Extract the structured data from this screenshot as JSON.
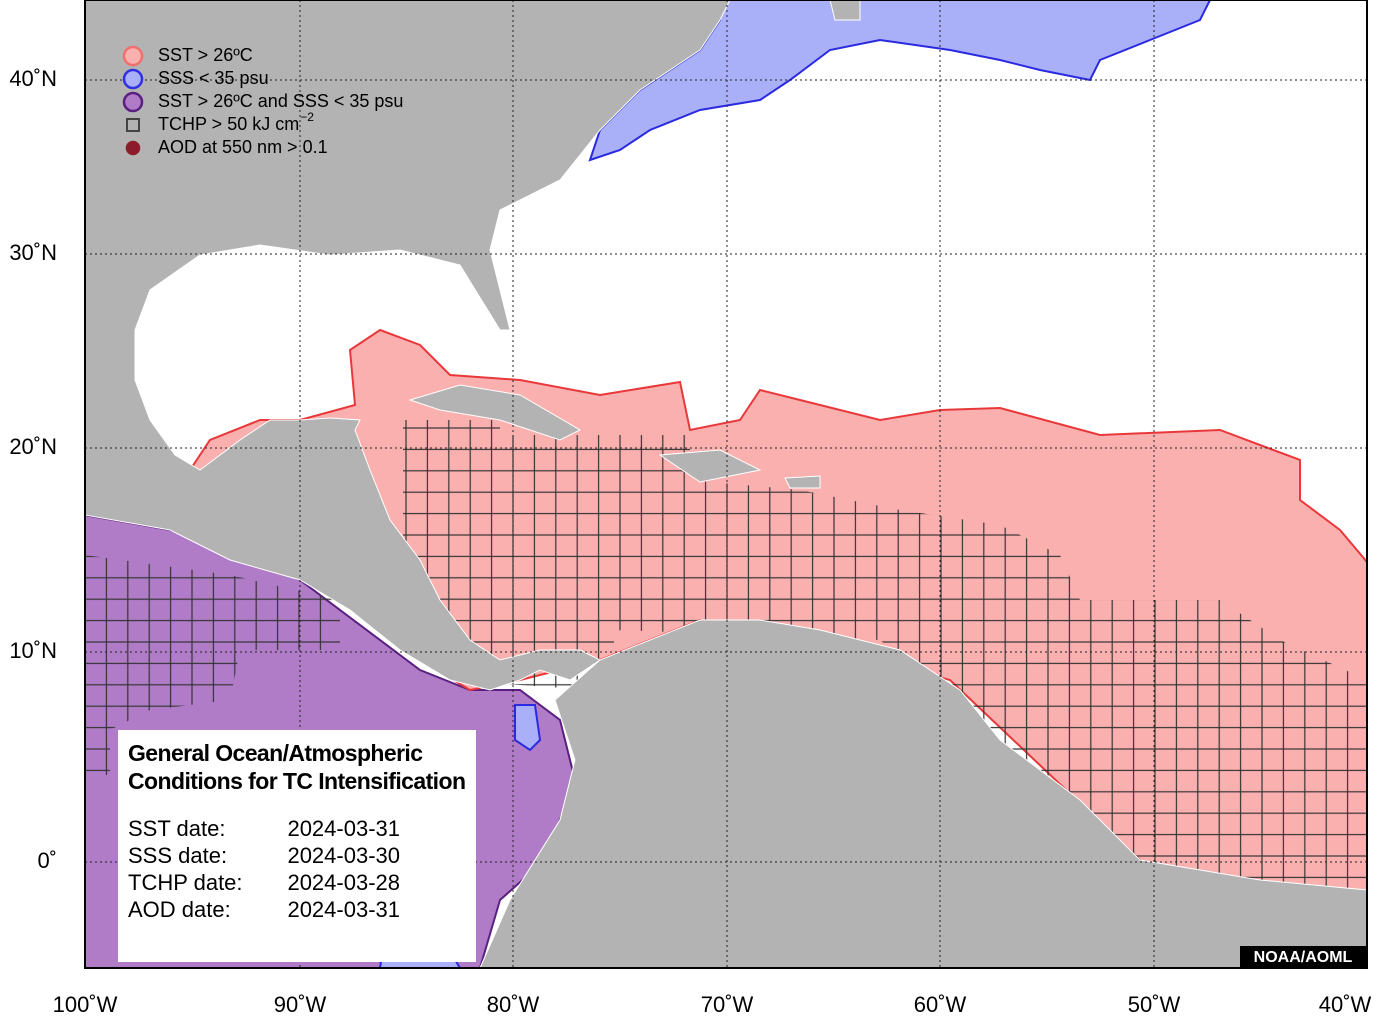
{
  "map": {
    "lat_labels": [
      "40˚N",
      "30˚N",
      "20˚N",
      "10˚N",
      "0˚"
    ],
    "lon_labels": [
      "100˚W",
      "90˚W",
      "80˚W",
      "70˚W",
      "60˚W",
      "50˚W",
      "40˚W"
    ],
    "legend": [
      {
        "label": "SST > 26ºC"
      },
      {
        "label": "SSS < 35 psu"
      },
      {
        "label": "SST > 26ºC and SSS < 35 psu"
      },
      {
        "label": "TCHP > 50 kJ cm",
        "superscript": "−2"
      },
      {
        "label": "AOD at 550 nm > 0.1"
      }
    ],
    "info": {
      "title": [
        "General Ocean/Atmospheric",
        "Conditions for TC Intensification"
      ],
      "dates": [
        {
          "label": "SST date:",
          "date": "2024-03-31"
        },
        {
          "label": "SSS date:",
          "date": "2024-03-30"
        },
        {
          "label": "TCHP date:",
          "date": "2024-03-28"
        },
        {
          "label": "AOD date:",
          "date": "2024-03-31"
        }
      ]
    },
    "credit": "NOAA/AOML"
  }
}
